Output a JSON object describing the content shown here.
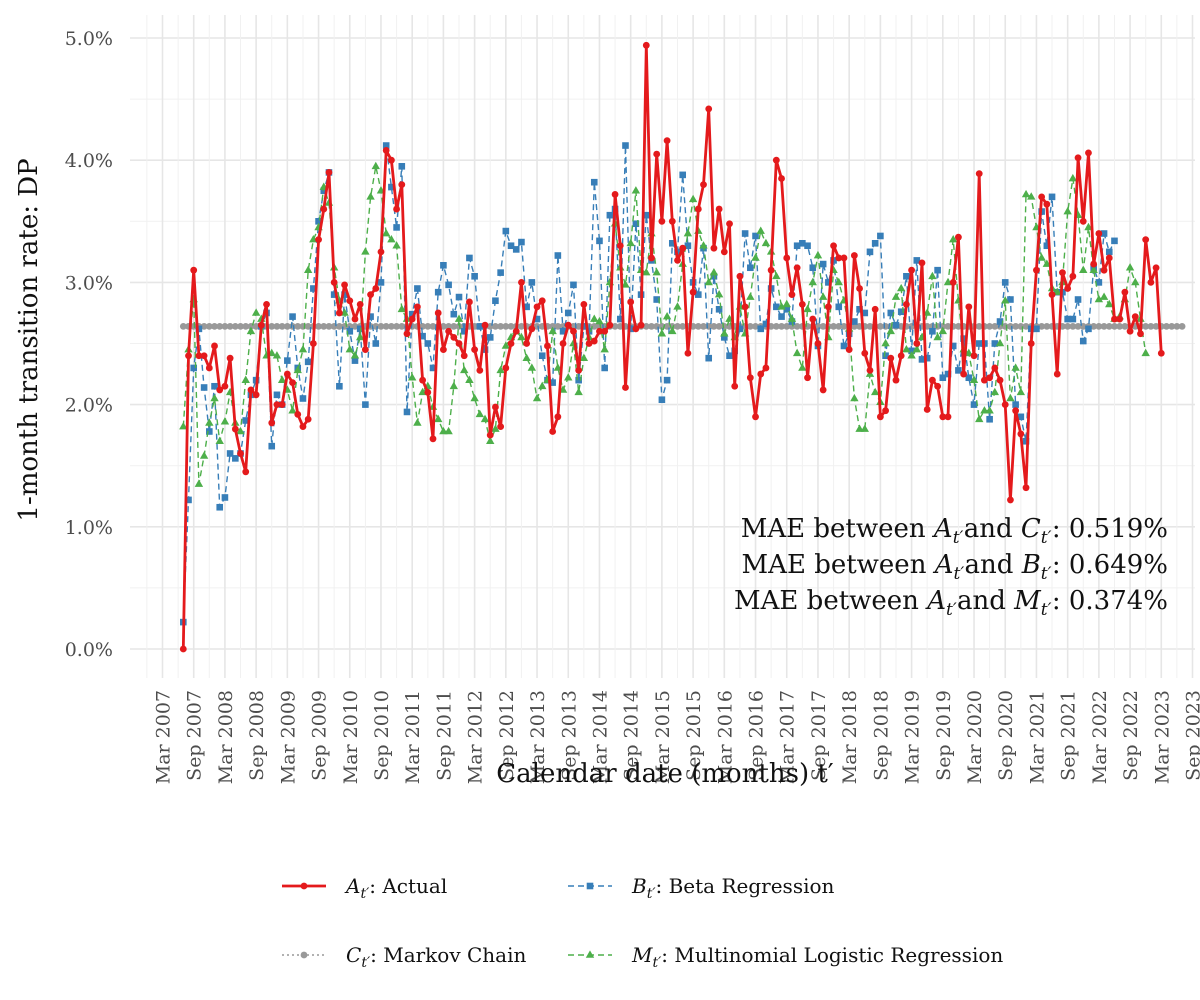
{
  "chart_data": {
    "type": "line",
    "xlabel": "Calendar date (months) t′",
    "ylabel": "1-month transition rate: DP",
    "y_unit": "%",
    "ylim": [
      0,
      5
    ],
    "yticks": [
      0,
      1,
      2,
      3,
      4,
      5
    ],
    "ytick_labels": [
      "0.0%",
      "1.0%",
      "2.0%",
      "3.0%",
      "4.0%",
      "5.0%"
    ],
    "xlim": [
      "2007-03",
      "2023-09"
    ],
    "xticks": [
      "2007-03",
      "2007-09",
      "2008-03",
      "2008-09",
      "2009-03",
      "2009-09",
      "2010-03",
      "2010-09",
      "2011-03",
      "2011-09",
      "2012-03",
      "2012-09",
      "2013-03",
      "2013-09",
      "2014-03",
      "2014-09",
      "2015-03",
      "2015-09",
      "2016-03",
      "2016-09",
      "2017-03",
      "2017-09",
      "2018-03",
      "2018-09",
      "2019-03",
      "2019-09",
      "2020-03",
      "2020-09",
      "2021-03",
      "2021-09",
      "2022-03",
      "2022-09",
      "2023-03",
      "2023-09"
    ],
    "xtick_labels": [
      "Mar 2007",
      "Sep 2007",
      "Mar 2008",
      "Sep 2008",
      "Mar 2009",
      "Sep 2009",
      "Mar 2010",
      "Sep 2010",
      "Mar 2011",
      "Sep 2011",
      "Mar 2012",
      "Sep 2012",
      "Mar 2013",
      "Sep 2013",
      "Mar 2014",
      "Sep 2014",
      "Mar 2015",
      "Sep 2015",
      "Mar 2016",
      "Sep 2016",
      "Mar 2017",
      "Sep 2017",
      "Mar 2018",
      "Sep 2018",
      "Mar 2019",
      "Sep 2019",
      "Mar 2020",
      "Sep 2020",
      "Mar 2021",
      "Sep 2021",
      "Mar 2022",
      "Sep 2022",
      "Mar 2023",
      "Sep 2023"
    ],
    "x_start": "2007-07",
    "x_step": "1 month",
    "grid": true,
    "legend_position": "bottom",
    "annotations": [
      {
        "prefix": "MAE between ",
        "a": "A",
        "mid": " and ",
        "b": "C",
        "value": ": 0.519%"
      },
      {
        "prefix": "MAE between ",
        "a": "A",
        "mid": " and ",
        "b": "B",
        "value": ": 0.649%"
      },
      {
        "prefix": "MAE between ",
        "a": "A",
        "mid": " and ",
        "b": "M",
        "value": ": 0.374%"
      }
    ],
    "series": [
      {
        "name": "Actual",
        "symbol": "A",
        "color": "#e41a1c",
        "dash": "solid",
        "marker": "circle",
        "values": [
          0.0,
          2.4,
          3.1,
          2.4,
          2.4,
          2.3,
          2.48,
          2.12,
          2.15,
          2.38,
          1.8,
          1.6,
          1.45,
          2.12,
          2.08,
          2.65,
          2.82,
          1.85,
          2.0,
          2.0,
          2.25,
          2.18,
          1.92,
          1.82,
          1.88,
          2.5,
          3.35,
          3.6,
          3.9,
          3.0,
          2.75,
          2.98,
          2.85,
          2.7,
          2.82,
          2.45,
          2.9,
          2.95,
          3.25,
          4.08,
          4.0,
          3.6,
          3.8,
          2.58,
          2.7,
          2.8,
          2.2,
          2.1,
          1.72,
          2.75,
          2.45,
          2.6,
          2.55,
          2.5,
          2.4,
          2.84,
          2.45,
          2.28,
          2.65,
          1.75,
          1.98,
          1.82,
          2.3,
          2.5,
          2.6,
          3.0,
          2.5,
          2.62,
          2.8,
          2.85,
          2.48,
          1.78,
          1.9,
          2.5,
          2.65,
          2.6,
          2.28,
          2.82,
          2.5,
          2.52,
          2.6,
          2.6,
          2.65,
          3.72,
          3.3,
          2.14,
          2.84,
          2.62,
          2.65,
          4.94,
          3.2,
          4.05,
          3.5,
          4.16,
          3.5,
          3.18,
          3.28,
          2.42,
          2.92,
          3.6,
          3.8,
          4.42,
          3.28,
          3.6,
          3.25,
          3.48,
          2.15,
          3.05,
          2.8,
          2.22,
          1.9,
          2.25,
          2.3,
          3.1,
          4.0,
          3.85,
          3.2,
          2.9,
          3.12,
          2.82,
          2.22,
          2.7,
          2.5,
          2.12,
          2.8,
          3.3,
          3.2,
          3.2,
          2.45,
          3.22,
          2.95,
          2.42,
          2.28,
          2.78,
          1.9,
          1.95,
          2.38,
          2.2,
          2.4,
          2.82,
          3.1,
          2.5,
          3.16,
          1.96,
          2.2,
          2.15,
          1.9,
          1.9,
          3.0,
          3.37,
          2.25,
          2.8,
          2.4,
          3.89,
          2.2,
          2.22,
          2.3,
          2.2,
          2.0,
          1.22,
          1.95,
          1.76,
          1.32,
          2.5,
          3.1,
          3.7,
          3.64,
          2.9,
          2.25,
          3.08,
          2.95,
          3.05,
          4.02,
          3.5,
          4.06,
          3.15,
          3.4,
          3.1,
          3.2,
          2.7,
          2.7,
          2.92,
          2.6,
          2.72,
          2.58,
          3.35,
          3.0,
          3.12,
          2.42
        ]
      },
      {
        "name": "Beta Regression",
        "symbol": "B",
        "color": "#377eb8",
        "dash": "dashed",
        "marker": "square",
        "values": [
          0.22,
          1.22,
          2.3,
          2.62,
          2.14,
          1.78,
          2.15,
          1.16,
          1.24,
          1.6,
          1.56,
          1.6,
          1.87,
          2.08,
          2.2,
          2.64,
          2.75,
          1.66,
          2.08,
          2.0,
          2.36,
          2.72,
          2.3,
          2.05,
          2.35,
          2.95,
          3.5,
          3.75,
          3.9,
          2.9,
          2.15,
          2.9,
          2.6,
          2.36,
          2.62,
          2.0,
          2.72,
          2.5,
          3.0,
          4.12,
          3.78,
          3.45,
          3.95,
          1.94,
          2.74,
          2.95,
          2.56,
          2.5,
          2.3,
          2.92,
          3.14,
          2.98,
          2.74,
          2.88,
          2.6,
          3.2,
          3.05,
          2.64,
          2.45,
          2.55,
          2.85,
          3.08,
          3.42,
          3.3,
          3.27,
          3.33,
          2.8,
          3.0,
          2.7,
          2.4,
          2.2,
          2.18,
          3.22,
          2.6,
          2.75,
          2.98,
          2.2,
          2.64,
          2.6,
          3.82,
          3.34,
          2.3,
          3.55,
          3.6,
          2.7,
          4.12,
          2.62,
          3.48,
          2.9,
          3.55,
          3.18,
          2.86,
          2.04,
          2.2,
          3.32,
          3.25,
          3.88,
          3.3,
          3.0,
          2.9,
          3.28,
          2.38,
          3.05,
          2.78,
          2.55,
          2.4,
          2.44,
          2.62,
          3.4,
          3.12,
          3.38,
          2.62,
          2.66,
          2.95,
          2.8,
          2.72,
          2.78,
          2.68,
          3.3,
          3.32,
          3.3,
          3.12,
          2.48,
          3.15,
          3.0,
          3.18,
          2.8,
          2.48,
          2.58,
          2.68,
          2.78,
          2.75,
          3.25,
          3.32,
          3.38,
          2.4,
          2.75,
          2.65,
          2.76,
          3.05,
          2.44,
          3.18,
          2.37,
          2.38,
          2.6,
          3.1,
          2.22,
          2.25,
          2.48,
          2.28,
          2.54,
          2.22,
          2.0,
          2.5,
          2.5,
          1.88,
          2.5,
          2.68,
          3.0,
          2.86,
          2.0,
          1.9,
          1.7,
          2.62,
          2.62,
          3.58,
          3.3,
          3.7,
          2.92,
          2.92,
          2.7,
          2.7,
          2.86,
          2.52,
          2.62,
          3.12,
          3.0,
          3.4,
          3.25,
          3.34
        ]
      },
      {
        "name": "Markov Chain",
        "symbol": "C",
        "color": "#999999",
        "dash": "dotted",
        "marker": "circle",
        "values": [
          2.64,
          2.64,
          2.64,
          2.64,
          2.64,
          2.64,
          2.64,
          2.64,
          2.64,
          2.64,
          2.64,
          2.64,
          2.64,
          2.64,
          2.64,
          2.64,
          2.64,
          2.64,
          2.64,
          2.64,
          2.64,
          2.64,
          2.64,
          2.64,
          2.64,
          2.64,
          2.64,
          2.64,
          2.64,
          2.64,
          2.64,
          2.64,
          2.64,
          2.64,
          2.64,
          2.64,
          2.64,
          2.64,
          2.64,
          2.64,
          2.64,
          2.64,
          2.64,
          2.64,
          2.64,
          2.64,
          2.64,
          2.64,
          2.64,
          2.64,
          2.64,
          2.64,
          2.64,
          2.64,
          2.64,
          2.64,
          2.64,
          2.64,
          2.64,
          2.64,
          2.64,
          2.64,
          2.64,
          2.64,
          2.64,
          2.64,
          2.64,
          2.64,
          2.64,
          2.64,
          2.64,
          2.64,
          2.64,
          2.64,
          2.64,
          2.64,
          2.64,
          2.64,
          2.64,
          2.64,
          2.64,
          2.64,
          2.64,
          2.64,
          2.64,
          2.64,
          2.64,
          2.64,
          2.64,
          2.64,
          2.64,
          2.64,
          2.64,
          2.64,
          2.64,
          2.64,
          2.64,
          2.64,
          2.64,
          2.64,
          2.64,
          2.64,
          2.64,
          2.64,
          2.64,
          2.64,
          2.64,
          2.64,
          2.64,
          2.64,
          2.64,
          2.64,
          2.64,
          2.64,
          2.64,
          2.64,
          2.64,
          2.64,
          2.64,
          2.64,
          2.64,
          2.64,
          2.64,
          2.64,
          2.64,
          2.64,
          2.64,
          2.64,
          2.64,
          2.64,
          2.64,
          2.64,
          2.64,
          2.64,
          2.64,
          2.64,
          2.64,
          2.64,
          2.64,
          2.64,
          2.64,
          2.64,
          2.64,
          2.64,
          2.64,
          2.64,
          2.64,
          2.64,
          2.64,
          2.64,
          2.64,
          2.64,
          2.64,
          2.64,
          2.64,
          2.64,
          2.64,
          2.64,
          2.64,
          2.64,
          2.64,
          2.64,
          2.64,
          2.64,
          2.64,
          2.64,
          2.64,
          2.64,
          2.64,
          2.64,
          2.64,
          2.64,
          2.64,
          2.64,
          2.64,
          2.64,
          2.64,
          2.64,
          2.64,
          2.64,
          2.64,
          2.64,
          2.64,
          2.64,
          2.64,
          2.64,
          2.64,
          2.64,
          2.64,
          2.64,
          2.64,
          2.64,
          2.64
        ]
      },
      {
        "name": "Multinomial Logistic Regression",
        "symbol": "M",
        "color": "#4daf4a",
        "dash": "dashed",
        "marker": "triangle",
        "values": [
          1.82,
          2.45,
          2.86,
          1.35,
          1.58,
          1.85,
          2.05,
          1.7,
          1.86,
          2.1,
          1.85,
          1.78,
          2.2,
          2.6,
          2.75,
          2.7,
          2.4,
          2.42,
          2.4,
          2.2,
          2.12,
          1.95,
          2.28,
          2.45,
          3.1,
          3.35,
          3.45,
          3.78,
          3.65,
          3.12,
          2.85,
          2.75,
          2.45,
          2.4,
          2.55,
          3.25,
          3.7,
          3.95,
          3.75,
          3.4,
          3.35,
          3.3,
          2.78,
          2.7,
          2.22,
          1.85,
          2.1,
          2.15,
          1.98,
          1.88,
          1.78,
          1.78,
          2.15,
          2.7,
          2.28,
          2.2,
          2.05,
          1.92,
          1.88,
          1.7,
          1.8,
          2.28,
          2.48,
          2.55,
          2.6,
          2.55,
          2.38,
          2.3,
          2.05,
          2.15,
          2.2,
          2.6,
          2.3,
          2.12,
          2.22,
          2.5,
          2.1,
          2.38,
          2.55,
          2.7,
          2.68,
          2.45,
          3.0,
          3.48,
          3.12,
          2.98,
          3.32,
          3.75,
          3.1,
          3.08,
          3.4,
          3.08,
          2.58,
          2.72,
          2.6,
          2.8,
          3.15,
          3.4,
          3.68,
          3.42,
          3.3,
          3.0,
          3.08,
          2.9,
          2.58,
          2.7,
          2.55,
          2.8,
          2.58,
          2.88,
          3.2,
          3.42,
          3.32,
          3.25,
          3.05,
          2.8,
          2.82,
          2.7,
          2.42,
          2.3,
          2.78,
          3.0,
          3.22,
          2.88,
          2.55,
          3.1,
          3.0,
          2.85,
          2.62,
          2.05,
          1.8,
          1.8,
          2.25,
          2.1,
          2.02,
          2.5,
          2.6,
          2.88,
          2.95,
          2.45,
          2.4,
          2.45,
          2.55,
          2.75,
          3.05,
          2.55,
          2.6,
          3.0,
          3.35,
          2.85,
          2.45,
          2.42,
          2.2,
          1.88,
          1.95,
          1.95,
          2.1,
          2.5,
          2.85,
          2.05,
          2.3,
          2.1,
          3.72,
          3.7,
          3.45,
          3.2,
          3.15,
          2.95,
          2.92,
          3.0,
          3.58,
          3.85,
          3.55,
          3.1,
          3.45,
          3.1,
          2.86,
          2.88,
          2.82,
          2.7,
          2.72,
          2.86,
          3.12,
          3.0,
          2.7,
          2.42
        ]
      }
    ]
  }
}
